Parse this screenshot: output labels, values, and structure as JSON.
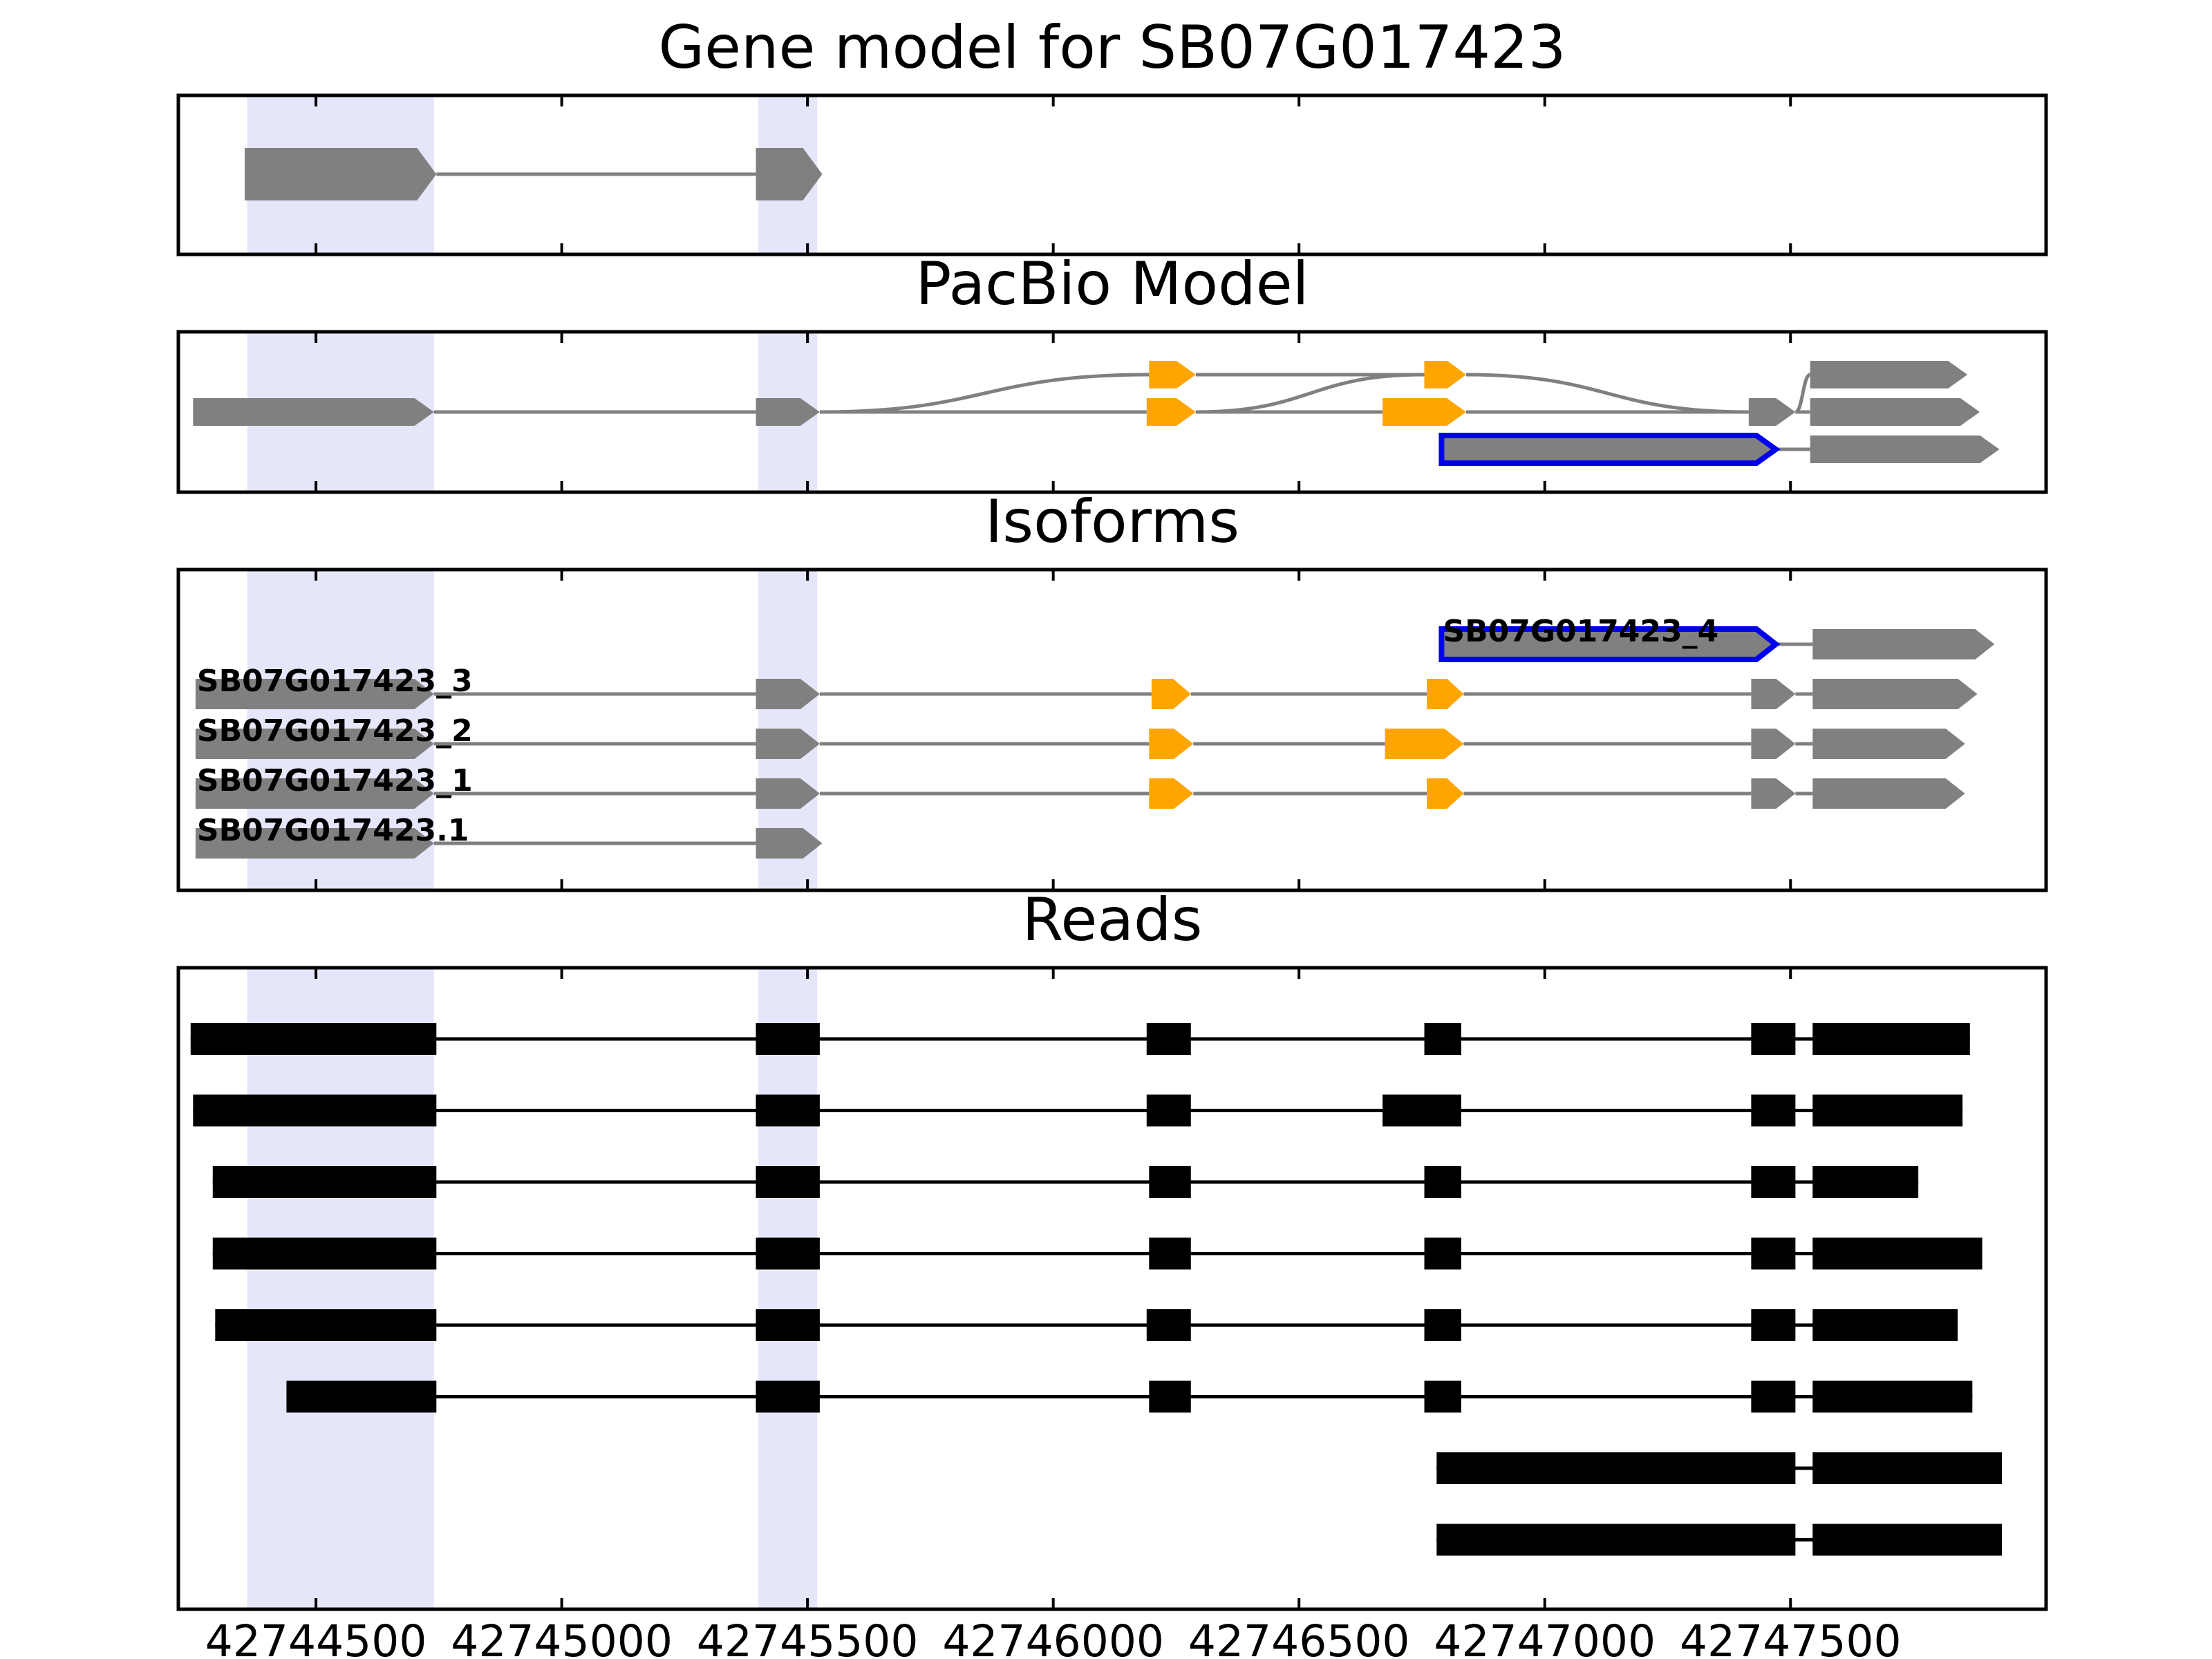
{
  "chart_data": {
    "type": "gene-structure",
    "xlim": [
      42744220,
      42748020
    ],
    "colors": {
      "exon": "#808080",
      "alt_exon": "#ffa500",
      "highlight_outline": "#0000ee",
      "shade": "#e6e6fa",
      "read": "#000000",
      "intron": "#808080"
    },
    "x_ticks": [
      42744500,
      42745000,
      42745500,
      42746000,
      42746500,
      42747000,
      42747500
    ],
    "shaded_regions": [
      [
        42744360,
        42744740
      ],
      [
        42745400,
        42745520
      ]
    ],
    "panels": [
      {
        "title": "Gene model for SB07G017423",
        "kind": "gene",
        "tracks": [
          {
            "exons": [
              [
                42744355,
                42744745
              ],
              [
                42745395,
                42745530
              ]
            ]
          }
        ]
      },
      {
        "title": "PacBio Model",
        "kind": "graph",
        "nodes": [
          {
            "id": "e1",
            "start": 42744250,
            "end": 42744740,
            "lane": 1,
            "color": "gray"
          },
          {
            "id": "e2",
            "start": 42745395,
            "end": 42745525,
            "lane": 1,
            "color": "gray"
          },
          {
            "id": "e3a",
            "start": 42746195,
            "end": 42746290,
            "lane": 0,
            "color": "orange"
          },
          {
            "id": "e3b",
            "start": 42746190,
            "end": 42746290,
            "lane": 1,
            "color": "orange"
          },
          {
            "id": "e4a",
            "start": 42746755,
            "end": 42746840,
            "lane": 0,
            "color": "orange"
          },
          {
            "id": "e4b",
            "start": 42746670,
            "end": 42746840,
            "lane": 1,
            "color": "orange"
          },
          {
            "id": "e5",
            "start": 42747415,
            "end": 42747510,
            "lane": 1,
            "color": "gray"
          },
          {
            "id": "e6a",
            "start": 42747540,
            "end": 42747860,
            "lane": 0,
            "color": "gray"
          },
          {
            "id": "e6b",
            "start": 42747540,
            "end": 42747885,
            "lane": 1,
            "color": "gray"
          },
          {
            "id": "e6c",
            "start": 42747540,
            "end": 42747925,
            "lane": 2,
            "color": "gray"
          },
          {
            "id": "h1",
            "start": 42746790,
            "end": 42747470,
            "lane": 2,
            "color": "gray",
            "highlight": true
          }
        ],
        "edges": [
          [
            "e1",
            "e2"
          ],
          [
            "e2",
            "e3a"
          ],
          [
            "e2",
            "e3b"
          ],
          [
            "e3a",
            "e4a"
          ],
          [
            "e3b",
            "e4a"
          ],
          [
            "e3b",
            "e4b"
          ],
          [
            "e4a",
            "e5"
          ],
          [
            "e4b",
            "e5"
          ],
          [
            "e5",
            "e6a"
          ],
          [
            "e5",
            "e6b"
          ],
          [
            "h1",
            "e6c"
          ]
        ]
      },
      {
        "title": "Isoforms",
        "kind": "isoforms",
        "tracks": [
          {
            "name": "SB07G017423_4",
            "highlight": true,
            "exons": [
              [
                42746790,
                42747470,
                "gray"
              ],
              [
                42747545,
                42747915,
                "gray"
              ]
            ]
          },
          {
            "name": "SB07G017423_3",
            "exons": [
              [
                42744255,
                42744740,
                "gray"
              ],
              [
                42745395,
                42745525,
                "gray"
              ],
              [
                42746200,
                42746280,
                "orange"
              ],
              [
                42746760,
                42746835,
                "orange"
              ],
              [
                42747420,
                42747510,
                "gray"
              ],
              [
                42747545,
                42747880,
                "gray"
              ]
            ]
          },
          {
            "name": "SB07G017423_2",
            "exons": [
              [
                42744255,
                42744740,
                "gray"
              ],
              [
                42745395,
                42745525,
                "gray"
              ],
              [
                42746195,
                42746285,
                "orange"
              ],
              [
                42746675,
                42746835,
                "orange"
              ],
              [
                42747420,
                42747510,
                "gray"
              ],
              [
                42747545,
                42747855,
                "gray"
              ]
            ]
          },
          {
            "name": "SB07G017423_1",
            "exons": [
              [
                42744255,
                42744740,
                "gray"
              ],
              [
                42745395,
                42745525,
                "gray"
              ],
              [
                42746195,
                42746285,
                "orange"
              ],
              [
                42746760,
                42746835,
                "orange"
              ],
              [
                42747420,
                42747510,
                "gray"
              ],
              [
                42747545,
                42747855,
                "gray"
              ]
            ]
          },
          {
            "name": "SB07G017423.1",
            "exons": [
              [
                42744255,
                42744740,
                "gray"
              ],
              [
                42745395,
                42745530,
                "gray"
              ]
            ]
          }
        ]
      },
      {
        "title": "Reads",
        "kind": "reads",
        "tracks": [
          {
            "exons": [
              [
                42744245,
                42744745
              ],
              [
                42745395,
                42745525
              ],
              [
                42746190,
                42746280
              ],
              [
                42746755,
                42746830
              ],
              [
                42747420,
                42747510
              ],
              [
                42747545,
                42747865
              ]
            ]
          },
          {
            "exons": [
              [
                42744250,
                42744745
              ],
              [
                42745395,
                42745525
              ],
              [
                42746190,
                42746280
              ],
              [
                42746670,
                42746830
              ],
              [
                42747420,
                42747510
              ],
              [
                42747545,
                42747850
              ]
            ]
          },
          {
            "exons": [
              [
                42744290,
                42744745
              ],
              [
                42745395,
                42745525
              ],
              [
                42746195,
                42746280
              ],
              [
                42746755,
                42746830
              ],
              [
                42747420,
                42747510
              ],
              [
                42747545,
                42747760
              ]
            ]
          },
          {
            "exons": [
              [
                42744290,
                42744745
              ],
              [
                42745395,
                42745525
              ],
              [
                42746195,
                42746280
              ],
              [
                42746755,
                42746830
              ],
              [
                42747420,
                42747510
              ],
              [
                42747545,
                42747890
              ]
            ]
          },
          {
            "exons": [
              [
                42744295,
                42744745
              ],
              [
                42745395,
                42745525
              ],
              [
                42746190,
                42746280
              ],
              [
                42746755,
                42746830
              ],
              [
                42747420,
                42747510
              ],
              [
                42747545,
                42747840
              ]
            ]
          },
          {
            "exons": [
              [
                42744440,
                42744745
              ],
              [
                42745395,
                42745525
              ],
              [
                42746195,
                42746280
              ],
              [
                42746755,
                42746830
              ],
              [
                42747420,
                42747510
              ],
              [
                42747545,
                42747870
              ]
            ]
          },
          {
            "exons": [
              [
                42746780,
                42747510
              ],
              [
                42747545,
                42747930
              ]
            ]
          },
          {
            "exons": [
              [
                42746780,
                42747510
              ],
              [
                42747545,
                42747930
              ]
            ]
          }
        ]
      }
    ]
  }
}
